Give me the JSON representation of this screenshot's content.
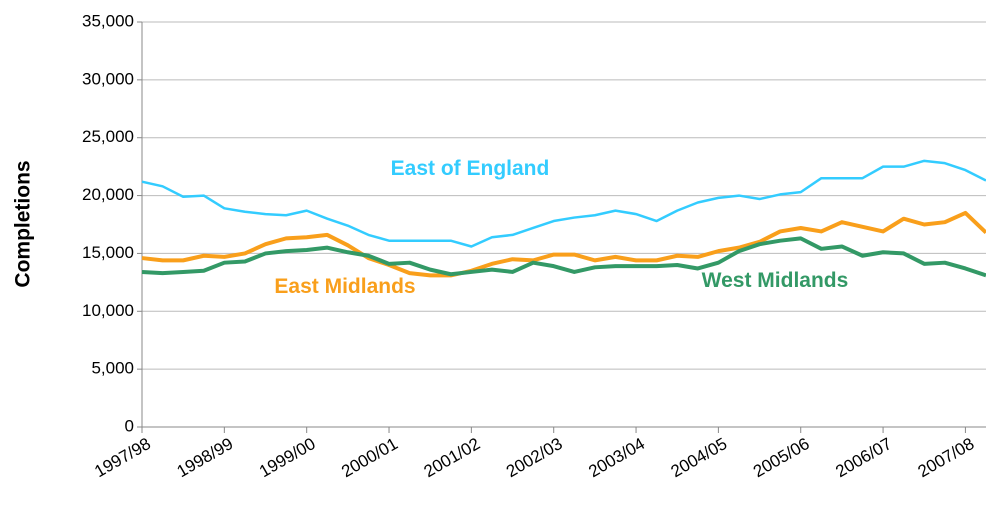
{
  "chart_data": {
    "type": "line",
    "y_label": "Completions",
    "categories": [
      "1997/98",
      null,
      null,
      null,
      "1998/99",
      null,
      null,
      null,
      "1999/00",
      null,
      null,
      null,
      "2000/01",
      null,
      null,
      null,
      "2001/02",
      null,
      null,
      null,
      "2002/03",
      null,
      null,
      null,
      "2003/04",
      null,
      null,
      null,
      "2004/05",
      null,
      null,
      null,
      "2005/06",
      null,
      null,
      null,
      "2006/07",
      null,
      null,
      null,
      "2007/08",
      null
    ],
    "series": [
      {
        "name": "East of England",
        "color": "#33ccff",
        "values": [
          21200,
          20800,
          19900,
          20000,
          18900,
          18600,
          18400,
          18300,
          18700,
          18000,
          17400,
          16600,
          16100,
          16100,
          16100,
          16100,
          15600,
          16400,
          16600,
          17200,
          17800,
          18100,
          18300,
          18700,
          18400,
          17800,
          18700,
          19400,
          19800,
          20000,
          19700,
          20100,
          20300,
          21500,
          21500,
          21500,
          22500,
          22500,
          23000,
          22800,
          22200,
          21300
        ]
      },
      {
        "name": "East Midlands",
        "color": "#f99f1b",
        "values": [
          14600,
          14400,
          14400,
          14800,
          14700,
          15000,
          15800,
          16300,
          16400,
          16600,
          15700,
          14600,
          14000,
          13300,
          13100,
          13100,
          13500,
          14100,
          14500,
          14400,
          14900,
          14900,
          14400,
          14700,
          14400,
          14400,
          14800,
          14700,
          15200,
          15500,
          16000,
          16900,
          17200,
          16900,
          17700,
          17300,
          16900,
          18000,
          17500,
          17700,
          18500,
          16800
        ]
      },
      {
        "name": "West Midlands",
        "color": "#339966",
        "values": [
          13400,
          13300,
          13400,
          13500,
          14200,
          14300,
          15000,
          15200,
          15300,
          15500,
          15100,
          14800,
          14100,
          14200,
          13600,
          13200,
          13400,
          13600,
          13400,
          14200,
          13900,
          13400,
          13800,
          13900,
          13900,
          13900,
          14000,
          13700,
          14200,
          15200,
          15800,
          16100,
          16300,
          15400,
          15600,
          14800,
          15100,
          15000,
          14100,
          14200,
          13700,
          13100
        ]
      }
    ],
    "ylim": [
      0,
      35000
    ],
    "yticks": [
      0,
      {
        "value": 5000,
        "label": "5,000"
      },
      {
        "value": 10000,
        "label": "10,000"
      },
      {
        "value": 15000,
        "label": "15,000"
      },
      {
        "value": 20000,
        "label": "20,000"
      },
      {
        "value": 25000,
        "label": "25,000"
      },
      {
        "value": 30000,
        "label": "30,000"
      },
      {
        "value": 35000,
        "label": "35,000"
      }
    ],
    "grid": true
  }
}
